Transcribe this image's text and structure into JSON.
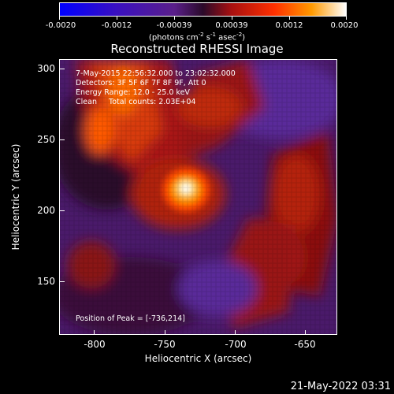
{
  "colorbar": {
    "ticks": [
      "-0.0020",
      "-0.0012",
      "-0.00039",
      "0.00039",
      "0.0012",
      "0.0020"
    ],
    "units_html": "(photons cm<sup>-2</sup> s<sup>-1</sup> asec<sup>-2</sup>)",
    "units": "(photons cm-2 s-1 asec-2)",
    "range": [
      -0.002,
      0.002
    ]
  },
  "title": "Reconstructed RHESSI Image",
  "info": {
    "time": "7-May-2015 22:56:32.000 to 23:02:32.000",
    "detectors": "Detectors: 3F 5F 6F 7F 8F 9F, Att 0",
    "energy": "Energy Range: 12.0 - 25.0 keV",
    "clean": "Clean     Total counts: 2.03E+04",
    "peak": "Position of Peak = [-736,214]"
  },
  "axes": {
    "xlabel": "Heliocentric X (arcsec)",
    "ylabel": "Heliocentric Y (arcsec)",
    "xticks": [
      "-800",
      "-750",
      "-700",
      "-650"
    ],
    "yticks": [
      "300",
      "250",
      "200",
      "150"
    ],
    "xlim": [
      -826,
      -628
    ],
    "ylim": [
      110,
      305
    ]
  },
  "timestamp": "21-May-2022 03:31"
}
